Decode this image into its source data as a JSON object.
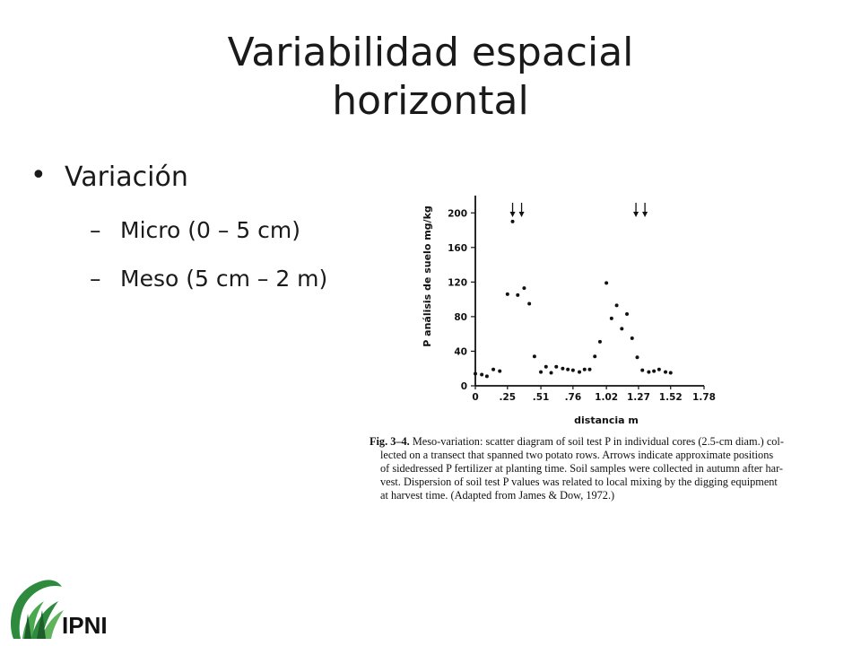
{
  "slide": {
    "title_line1": "Variabilidad espacial",
    "title_line2": "horizontal",
    "bullet": "Variación",
    "sub_items": [
      "Micro (0 – 5 cm)",
      "Meso (5 cm – 2 m)"
    ],
    "dash": "–"
  },
  "figure": {
    "ylabel": "P análisis de suelo mg/kg",
    "xlabel": "distancia m",
    "caption_label": "Fig. 3–4.",
    "caption_lines": [
      "Meso-variation: scatter diagram of soil test P in individual cores (2.5-cm diam.) col-",
      "lected on a transect that spanned two potato rows. Arrows indicate approximate positions",
      "of sidedressed P fertilizer at planting time. Soil samples were collected in autumn after har-",
      "vest. Dispersion of soil test P values was related to local mixing by the digging equipment",
      "at harvest time. (Adapted from James & Dow, 1972.)"
    ]
  },
  "logo": {
    "text": "IPNI",
    "colors": {
      "green": "#2e8b3e",
      "dark": "#1e5e2a"
    }
  },
  "chart_data": {
    "type": "scatter",
    "xlabel": "distancia m",
    "ylabel": "P análisis de suelo mg/kg",
    "x_ticks": [
      "0",
      ".25",
      ".51",
      ".76",
      "1.02",
      "1.27",
      "1.52",
      "1.78"
    ],
    "y_ticks": [
      "0",
      "40",
      "80",
      "120",
      "160",
      "200"
    ],
    "xlim": [
      0,
      1.78
    ],
    "ylim": [
      0,
      220
    ],
    "grid": false,
    "arrows_at_x": [
      0.29,
      0.36,
      1.25,
      1.32
    ],
    "points": [
      [
        0.0,
        14
      ],
      [
        0.05,
        13
      ],
      [
        0.09,
        11
      ],
      [
        0.14,
        19
      ],
      [
        0.19,
        17
      ],
      [
        0.25,
        106
      ],
      [
        0.29,
        190
      ],
      [
        0.33,
        105
      ],
      [
        0.38,
        113
      ],
      [
        0.42,
        95
      ],
      [
        0.46,
        34
      ],
      [
        0.51,
        16
      ],
      [
        0.55,
        22
      ],
      [
        0.59,
        15
      ],
      [
        0.63,
        22
      ],
      [
        0.68,
        20
      ],
      [
        0.72,
        19
      ],
      [
        0.76,
        18
      ],
      [
        0.81,
        16
      ],
      [
        0.85,
        19
      ],
      [
        0.89,
        19
      ],
      [
        0.93,
        34
      ],
      [
        0.97,
        51
      ],
      [
        1.02,
        119
      ],
      [
        1.06,
        78
      ],
      [
        1.1,
        93
      ],
      [
        1.14,
        66
      ],
      [
        1.18,
        83
      ],
      [
        1.22,
        55
      ],
      [
        1.26,
        33
      ],
      [
        1.3,
        18
      ],
      [
        1.35,
        16
      ],
      [
        1.39,
        17
      ],
      [
        1.43,
        19
      ],
      [
        1.48,
        16
      ],
      [
        1.52,
        15
      ]
    ]
  }
}
